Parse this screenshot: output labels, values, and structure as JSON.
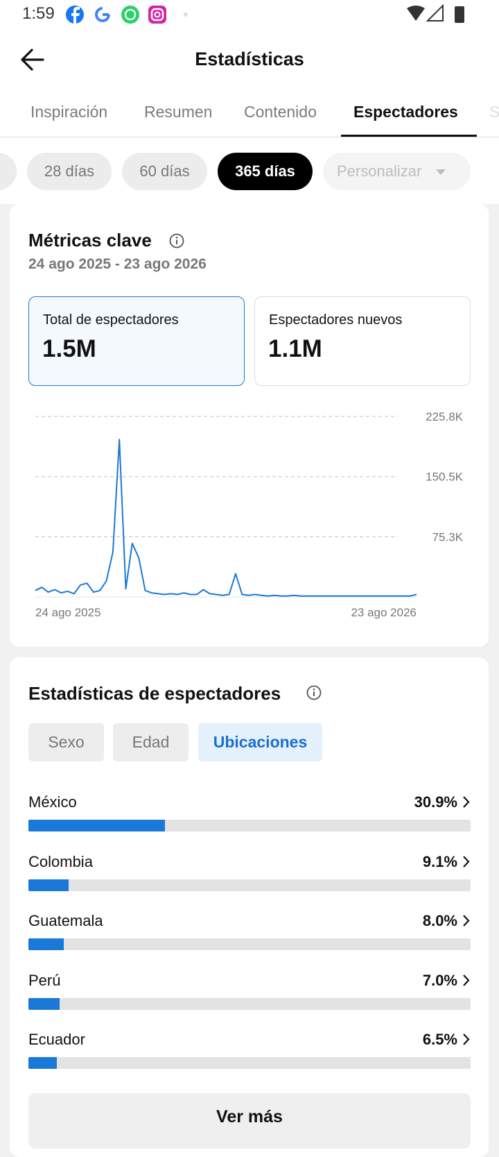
{
  "status_bar": {
    "time": "1:59"
  },
  "header": {
    "title": "Estadísticas"
  },
  "tabs": [
    "Inspiración",
    "Resumen",
    "Contenido",
    "Espectadores",
    "S"
  ],
  "active_tab": 3,
  "periods": [
    "28 días",
    "60 días",
    "365 días",
    "Personalizar"
  ],
  "active_period": 2,
  "key_metrics": {
    "title": "Métricas clave",
    "date_range": "24 ago 2025 - 23 ago 2026",
    "cards": [
      {
        "label": "Total de espectadores",
        "value": "1.5M"
      },
      {
        "label": "Espectadores nuevos",
        "value": "1.1M"
      }
    ],
    "active_card": 0
  },
  "chart": {
    "type": "line",
    "color": "#1a78d8",
    "categories": [
      "24 ago 2025",
      null,
      null,
      null,
      null,
      null,
      null,
      null,
      null,
      null,
      null,
      null,
      null,
      null,
      null,
      null,
      null,
      null,
      null,
      null,
      null,
      null,
      null,
      null,
      null,
      null,
      null,
      null,
      null,
      null,
      null,
      null,
      null,
      null,
      null,
      null,
      null,
      null,
      null,
      null,
      null,
      null,
      null,
      null,
      null,
      null,
      null,
      null,
      null,
      null,
      null,
      null,
      null,
      null,
      null,
      null,
      null,
      null,
      null,
      "23 ago 2026"
    ],
    "values": [
      8000,
      12000,
      6000,
      9000,
      5000,
      7000,
      4000,
      15000,
      17000,
      6000,
      8000,
      20000,
      56000,
      197000,
      10000,
      67000,
      49000,
      8000,
      5000,
      4000,
      3000,
      4000,
      3000,
      5000,
      3000,
      3000,
      9000,
      4000,
      3000,
      2000,
      3000,
      29000,
      3000,
      2000,
      3000,
      2000,
      1000,
      2000,
      1000,
      1000,
      2000,
      1000,
      1000,
      1000,
      1000,
      1000,
      1000,
      1000,
      1000,
      1000,
      1000,
      1000,
      1000,
      1000,
      1000,
      1000,
      1000,
      1000,
      1000,
      3000
    ],
    "ylim": [
      0,
      225800
    ],
    "yticks": [
      {
        "value": 75300,
        "label": "75.3K"
      },
      {
        "value": 150500,
        "label": "150.5K"
      },
      {
        "value": 225800,
        "label": "225.8K"
      }
    ],
    "grid": true
  },
  "audience": {
    "title": "Estadísticas de espectadores",
    "filters": [
      "Sexo",
      "Edad",
      "Ubicaciones"
    ],
    "active_filter": 2,
    "locations": {
      "categories": [
        "México",
        "Colombia",
        "Guatemala",
        "Perú",
        "Ecuador"
      ],
      "values": [
        30.9,
        9.1,
        8.0,
        7.0,
        6.5
      ],
      "value_labels": [
        "30.9%",
        "9.1%",
        "8.0%",
        "7.0%",
        "6.5%"
      ],
      "xlim": [
        0,
        100
      ],
      "color": "#1a78d8"
    },
    "more_button": "Ver más"
  }
}
